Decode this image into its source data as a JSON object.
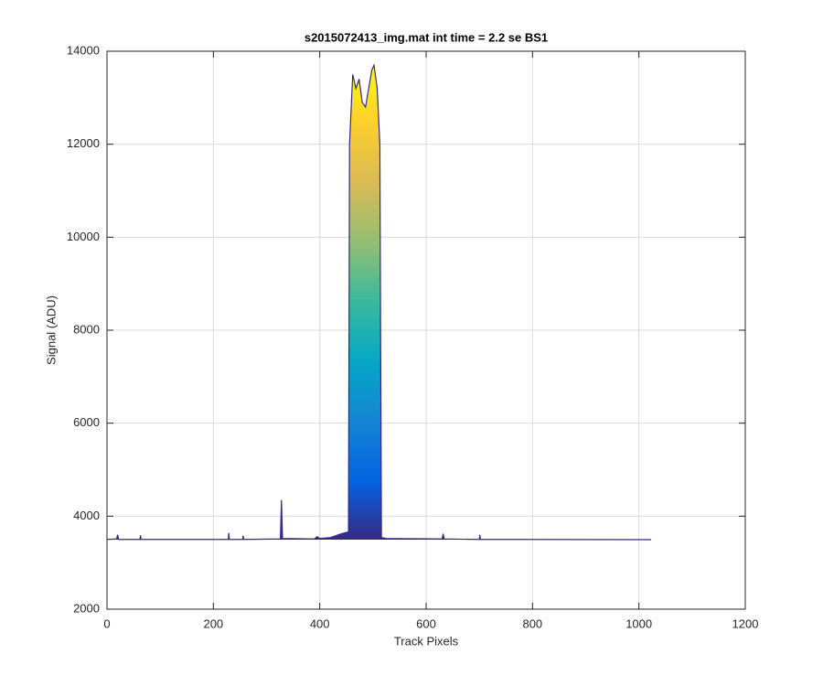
{
  "chart_data": {
    "type": "area",
    "title": "s2015072413_img.mat int time = 2.2 se   BS1",
    "xlabel": "Track Pixels",
    "ylabel": "Signal (ADU)",
    "x": [
      0,
      18,
      20,
      22,
      62,
      63,
      64,
      228,
      229,
      230,
      255,
      256,
      257,
      326,
      328,
      330,
      390,
      395,
      400,
      420,
      430,
      440,
      450,
      454,
      456,
      462,
      468,
      474,
      480,
      486,
      492,
      498,
      502,
      508,
      513,
      516,
      525,
      630,
      632,
      634,
      700,
      701,
      702,
      800,
      1023
    ],
    "values": [
      3500,
      3510,
      3600,
      3500,
      3500,
      3590,
      3500,
      3500,
      3640,
      3500,
      3500,
      3580,
      3500,
      3510,
      4350,
      3520,
      3510,
      3560,
      3520,
      3540,
      3580,
      3620,
      3650,
      3660,
      12000,
      13500,
      13200,
      13400,
      12900,
      12800,
      13200,
      13600,
      13700,
      13200,
      12000,
      3540,
      3520,
      3510,
      3620,
      3510,
      3500,
      3600,
      3500,
      3500,
      3495
    ],
    "color": "#352a87",
    "colormap": [
      "#352a87",
      "#0363e1",
      "#1485d4",
      "#06a7c6",
      "#38b99e",
      "#92bf73",
      "#d9ba56",
      "#fcce2e",
      "#f9fb0e"
    ],
    "xlim": [
      0,
      1200
    ],
    "xticks": [
      0,
      200,
      400,
      600,
      800,
      1000,
      1200
    ],
    "ylim": [
      2000,
      14000
    ],
    "yticks": [
      2000,
      4000,
      6000,
      8000,
      10000,
      12000,
      14000
    ],
    "grid": true
  }
}
